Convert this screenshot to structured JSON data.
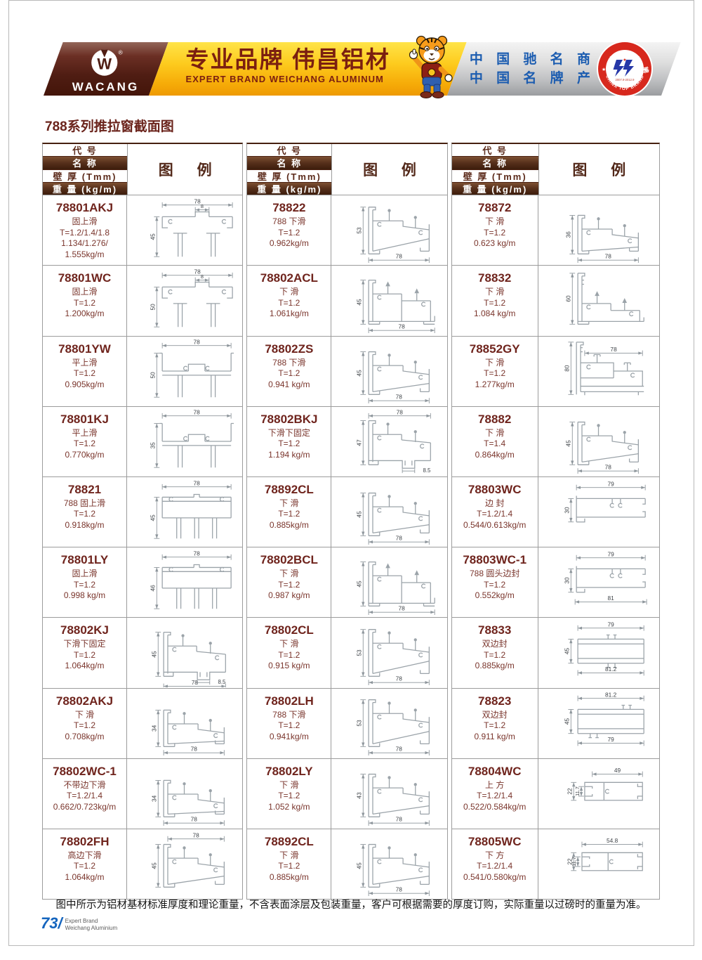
{
  "header": {
    "logo": {
      "brand": "WACANG",
      "reg": "®"
    },
    "slogan_cn": "专业品牌  伟昌铝材",
    "slogan_en": "EXPERT BRAND WEICHANG ALUMINUM",
    "honors": [
      "中 国 驰 名 商 标",
      "中 国 名 牌 产 品"
    ],
    "badge": {
      "top": "中 国 名 牌",
      "bottom": "CHINA TOP BRAND",
      "period": "2007.9-2012.9"
    }
  },
  "page_title": "788系列推拉窗截面图",
  "table_header": {
    "code": "代 号",
    "name": "名 称",
    "thickness": "壁 厚 (Tmm)",
    "weight": "重 量 (kg/m)",
    "legend": "图  例"
  },
  "tables": [
    {
      "rows": [
        {
          "code": "78801AKJ",
          "name": "固上滑",
          "thickness": "T=1.2/1.4/1.8",
          "weight": "1.134/1.276/\n1.555kg/m",
          "diagram": {
            "kind": "topA",
            "top": "78",
            "inner": "8",
            "left": "45"
          }
        },
        {
          "code": "78801WC",
          "name": "固上滑",
          "thickness": "T=1.2",
          "weight": "1.200kg/m",
          "diagram": {
            "kind": "topA",
            "top": "78",
            "inner": "8",
            "left": "50"
          }
        },
        {
          "code": "78801YW",
          "name": "平上滑",
          "thickness": "T=1.2",
          "weight": "0.905kg/m",
          "diagram": {
            "kind": "topB",
            "top": "78",
            "left": "50"
          }
        },
        {
          "code": "78801KJ",
          "name": "平上滑",
          "thickness": "T=1.2",
          "weight": "0.770kg/m",
          "diagram": {
            "kind": "topB",
            "top": "78",
            "left": "35"
          }
        },
        {
          "code": "78821",
          "name": "788 固上滑",
          "thickness": "T=1.2",
          "weight": "0.918kg/m",
          "diagram": {
            "kind": "topC",
            "top": "78",
            "left": "45"
          }
        },
        {
          "code": "78801LY",
          "name": "固上滑",
          "thickness": "T=1.2",
          "weight": "0.998 kg/m",
          "diagram": {
            "kind": "topC",
            "top": "78",
            "left": "46"
          }
        },
        {
          "code": "78802KJ",
          "name": "下滑下固定",
          "thickness": "T=1.2",
          "weight": "1.064kg/m",
          "diagram": {
            "kind": "botNotch",
            "left": "45",
            "bottom": "78",
            "inner": "8.5"
          }
        },
        {
          "code": "78802AKJ",
          "name": "下 滑",
          "thickness": "T=1.2",
          "weight": "0.708kg/m",
          "diagram": {
            "kind": "botSlant",
            "left": "34",
            "bottom": "78"
          }
        },
        {
          "code": "78802WC-1",
          "name": "不带边下滑",
          "thickness": "T=1.2/1.4",
          "weight": "0.662/0.723kg/m",
          "diagram": {
            "kind": "botSlant",
            "left": "34",
            "bottom": "78"
          }
        },
        {
          "code": "78802FH",
          "name": "高边下滑",
          "thickness": "T=1.2",
          "weight": "1.064kg/m",
          "diagram": {
            "kind": "botSlant",
            "top": "78",
            "left": "45"
          }
        }
      ]
    },
    {
      "rows": [
        {
          "code": "78822",
          "name": "788 下滑",
          "thickness": "T=1.2",
          "weight": "0.962kg/m",
          "diagram": {
            "kind": "botSlant",
            "left": "53",
            "bottom": "78"
          }
        },
        {
          "code": "78802ACL",
          "name": "下 滑",
          "thickness": "T=1.2",
          "weight": "1.061kg/m",
          "diagram": {
            "kind": "botStep",
            "left": "45",
            "bottom": "78"
          }
        },
        {
          "code": "78802ZS",
          "name": "788 下滑",
          "thickness": "T=1.2",
          "weight": "0.941 kg/m",
          "diagram": {
            "kind": "botSlant",
            "left": "45",
            "bottom": "78"
          }
        },
        {
          "code": "78802BKJ",
          "name": "下滑下固定",
          "thickness": "T=1.2",
          "weight": "1.194 kg/m",
          "diagram": {
            "kind": "botNotch",
            "top": "78",
            "left": "47",
            "inner": "8.5"
          }
        },
        {
          "code": "78892CL",
          "name": "下 滑",
          "thickness": "T=1.2",
          "weight": "0.885kg/m",
          "diagram": {
            "kind": "botSlant",
            "left": "45",
            "bottom": "78"
          }
        },
        {
          "code": "78802BCL",
          "name": "下 滑",
          "thickness": "T=1.2",
          "weight": "0.987 kg/m",
          "diagram": {
            "kind": "botStep",
            "left": "45",
            "bottom": "78"
          }
        },
        {
          "code": "78802CL",
          "name": "下 滑",
          "thickness": "T=1.2",
          "weight": "0.915 kg/m",
          "diagram": {
            "kind": "botSlant",
            "left": "53",
            "bottom": "78"
          }
        },
        {
          "code": "78802LH",
          "name": "788 下滑",
          "thickness": "T=1.2",
          "weight": "0.941kg/m",
          "diagram": {
            "kind": "botSlant",
            "left": "53",
            "bottom": "78"
          }
        },
        {
          "code": "78802LY",
          "name": "下 滑",
          "thickness": "T=1.2",
          "weight": "1.052 kg/m",
          "diagram": {
            "kind": "botSlant",
            "left": "43",
            "bottom": "78"
          }
        },
        {
          "code": "78892CL",
          "name": "下 滑",
          "thickness": "T=1.2",
          "weight": "0.885kg/m",
          "diagram": {
            "kind": "botSlant",
            "left": "45",
            "bottom": "78"
          }
        }
      ]
    },
    {
      "rows": [
        {
          "code": "78872",
          "name": "下 滑",
          "thickness": "T=1.2",
          "weight": "0.623 kg/m",
          "diagram": {
            "kind": "botSlant",
            "left": "36",
            "bottom": "78"
          }
        },
        {
          "code": "78832",
          "name": "下 滑",
          "thickness": "T=1.2",
          "weight": "1.084 kg/m",
          "diagram": {
            "kind": "botTall",
            "left": "60"
          }
        },
        {
          "code": "78852GY",
          "name": "下 滑",
          "thickness": "T=1.2",
          "weight": "1.277kg/m",
          "diagram": {
            "kind": "botTallGY",
            "left": "80",
            "top": "78"
          }
        },
        {
          "code": "78882",
          "name": "下 滑",
          "thickness": "T=1.4",
          "weight": "0.864kg/m",
          "diagram": {
            "kind": "botSlant",
            "left": "45",
            "bottom": "78"
          }
        },
        {
          "code": "78803WC",
          "name": "边 封",
          "thickness": "T=1.2/1.4",
          "weight": "0.544/0.613kg/m",
          "diagram": {
            "kind": "edgeSeal",
            "top": "79",
            "left": "30"
          }
        },
        {
          "code": "78803WC-1",
          "name": "788 圆头边封",
          "thickness": "T=1.2",
          "weight": "0.552kg/m",
          "diagram": {
            "kind": "edgeSeal",
            "top": "79",
            "left": "30",
            "bottom": "81"
          }
        },
        {
          "code": "78833",
          "name": "双边封",
          "thickness": "T=1.2",
          "weight": "0.885kg/m",
          "diagram": {
            "kind": "dblSeal",
            "top": "79",
            "left": "45",
            "bottom": "81.2",
            "clips": "center"
          }
        },
        {
          "code": "78823",
          "name": "双边封",
          "thickness": "T=1.2",
          "weight": "0.911 kg/m",
          "diagram": {
            "kind": "dblSeal",
            "top": "81.2",
            "left": "45",
            "bottom": "79",
            "clips": "offset"
          }
        },
        {
          "code": "78804WC",
          "name": "上 方",
          "thickness": "T=1.2/1.4",
          "weight": "0.522/0.584kg/m",
          "diagram": {
            "kind": "boxTop",
            "top": "49",
            "left": "22",
            "inner": "11.7"
          }
        },
        {
          "code": "78805WC",
          "name": "下 方",
          "thickness": "T=1.2/1.4",
          "weight": "0.541/0.580kg/m",
          "diagram": {
            "kind": "boxBottom",
            "top": "54.8",
            "left": "22",
            "inner": "11.7"
          }
        }
      ]
    }
  ],
  "footer": {
    "note": "图中所示为铝材基材标准厚度和理论重量，不含表面涂层及包装重量，客户可根据需要的厚度订购，实际重量以过磅时的重量为准。",
    "page": "73/",
    "brand_line1": "Expert Brand",
    "brand_line2": "Weichang Aluminium"
  },
  "colors": {
    "accent_maroon": "#6f241d",
    "band_brown": "#57301b",
    "band_yellow": "#fdcb1e",
    "honor_blue": "#1b5cb0",
    "badge_red": "#d7281d",
    "diagram_gray": "#9ba3a9"
  }
}
